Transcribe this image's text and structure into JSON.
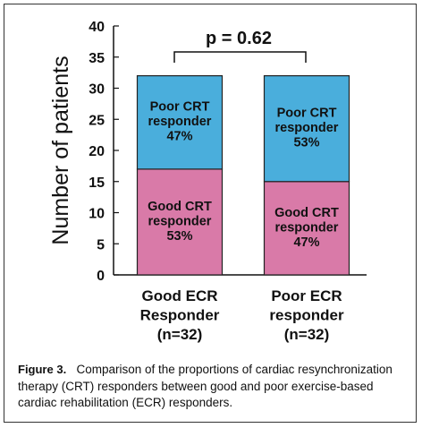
{
  "chart_data": {
    "type": "bar",
    "stacked": true,
    "categories": [
      {
        "line1": "Good ECR",
        "line2": "Responder",
        "line3": "(n=32)"
      },
      {
        "line1": "Poor ECR",
        "line2": "responder",
        "line3": "(n=32)"
      }
    ],
    "series": [
      {
        "name": "Good CRT responder",
        "color": "#d97aa8",
        "values": [
          17,
          15
        ],
        "labels": [
          {
            "line1": "Good CRT",
            "line2": "responder",
            "line3": "53%"
          },
          {
            "line1": "Good CRT",
            "line2": "responder",
            "line3": "47%"
          }
        ]
      },
      {
        "name": "Poor CRT responder",
        "color": "#4aaedc",
        "values": [
          15,
          17
        ],
        "labels": [
          {
            "line1": "Poor CRT",
            "line2": "responder",
            "line3": "47%"
          },
          {
            "line1": "Poor CRT",
            "line2": "responder",
            "line3": "53%"
          }
        ]
      }
    ],
    "ylabel": "Number of patients",
    "ylim": [
      0,
      40
    ],
    "yticks": [
      0,
      5,
      10,
      15,
      20,
      25,
      30,
      35,
      40
    ],
    "annotation": "p = 0.62",
    "grid": false
  },
  "caption": {
    "label": "Figure 3.",
    "text": "Comparison of the proportions of cardiac resynchronization therapy (CRT) responders between good and poor exercise-based cardiac rehabilitation (ECR) responders."
  }
}
